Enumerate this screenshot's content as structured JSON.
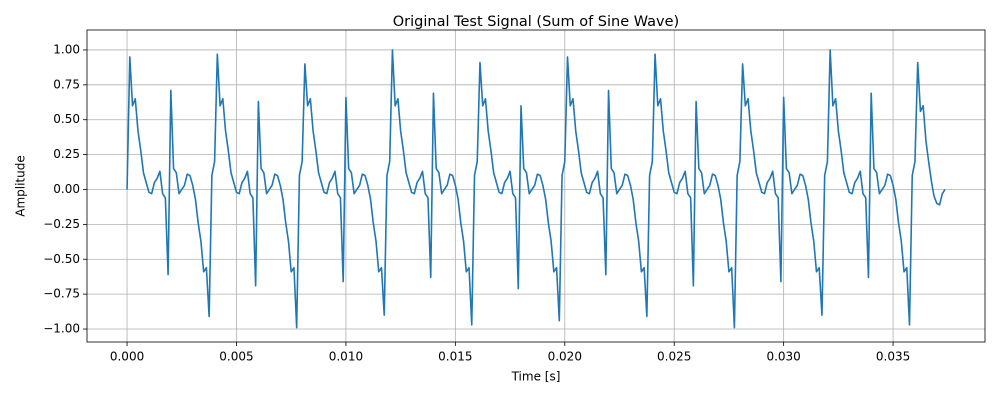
{
  "chart_data": {
    "type": "line",
    "title": "Original Test Signal (Sum of Sine Wave)",
    "xlabel": "Time [s]",
    "ylabel": "Amplitude",
    "grid": true,
    "xlim": [
      -0.00183,
      0.0392
    ],
    "ylim": [
      -1.093,
      1.143
    ],
    "xticks": [
      {
        "value": 0,
        "label": "0.000"
      },
      {
        "value": 0.005,
        "label": "0.005"
      },
      {
        "value": 0.01,
        "label": "0.010"
      },
      {
        "value": 0.015,
        "label": "0.015"
      },
      {
        "value": 0.02,
        "label": "0.020"
      },
      {
        "value": 0.025,
        "label": "0.025"
      },
      {
        "value": 0.03,
        "label": "0.030"
      },
      {
        "value": 0.035,
        "label": "0.035"
      }
    ],
    "yticks": [
      {
        "value": -1,
        "label": "−1.00"
      },
      {
        "value": -0.75,
        "label": "−0.75"
      },
      {
        "value": -0.5,
        "label": "−0.50"
      },
      {
        "value": -0.25,
        "label": "−0.25"
      },
      {
        "value": 0,
        "label": "0.00"
      },
      {
        "value": 0.25,
        "label": "0.25"
      },
      {
        "value": 0.5,
        "label": "0.50"
      },
      {
        "value": 0.75,
        "label": "0.75"
      },
      {
        "value": 1,
        "label": "1.00"
      }
    ],
    "x": [
      0,
      0.000125,
      0.00025,
      0.000375,
      0.0005,
      0.000625,
      0.00075,
      0.000875,
      0.001,
      0.001125,
      0.00125,
      0.001375,
      0.0015,
      0.001625,
      0.00175,
      0.001875,
      0.002,
      0.002125,
      0.00225,
      0.002375,
      0.0025,
      0.002625,
      0.00275,
      0.002875,
      0.003,
      0.003125,
      0.00325,
      0.003375,
      0.0035,
      0.003625,
      0.00375,
      0.003875,
      0.004,
      0.004125,
      0.00425,
      0.004375,
      0.0045,
      0.004625,
      0.00475,
      0.004875,
      0.005,
      0.005125,
      0.00525,
      0.005375,
      0.0055,
      0.005625,
      0.00575,
      0.005875,
      0.006,
      0.006125,
      0.00625,
      0.006375,
      0.0065,
      0.006625,
      0.00675,
      0.006875,
      0.007,
      0.007125,
      0.00725,
      0.007375,
      0.0075,
      0.007625,
      0.00775,
      0.007875,
      0.008,
      0.008125,
      0.00825,
      0.008375,
      0.0085,
      0.008625,
      0.00875,
      0.008875,
      0.009,
      0.009125,
      0.00925,
      0.009375,
      0.0095,
      0.009625,
      0.00975,
      0.009875,
      0.01,
      0.010125,
      0.01025,
      0.010375,
      0.0105,
      0.010625,
      0.01075,
      0.010875,
      0.011,
      0.011125,
      0.01125,
      0.011375,
      0.0115,
      0.011625,
      0.01175,
      0.011875,
      0.012,
      0.012125,
      0.01225,
      0.012375,
      0.0125,
      0.012625,
      0.01275,
      0.012875,
      0.013,
      0.013125,
      0.01325,
      0.013375,
      0.0135,
      0.013625,
      0.01375,
      0.013875,
      0.014,
      0.014125,
      0.01425,
      0.014375,
      0.0145,
      0.014625,
      0.01475,
      0.014875,
      0.015,
      0.015125,
      0.01525,
      0.015375,
      0.0155,
      0.015625,
      0.01575,
      0.015875,
      0.016,
      0.016125,
      0.01625,
      0.016375,
      0.0165,
      0.016625,
      0.01675,
      0.016875,
      0.017,
      0.017125,
      0.01725,
      0.017375,
      0.0175,
      0.017625,
      0.01775,
      0.017875,
      0.018,
      0.018125,
      0.01825,
      0.018375,
      0.0185,
      0.018625,
      0.01875,
      0.018875,
      0.019,
      0.019125,
      0.01925,
      0.019375,
      0.0195,
      0.019625,
      0.01975,
      0.019875,
      0.02,
      0.020125,
      0.02025,
      0.020375,
      0.0205,
      0.020625,
      0.02075,
      0.020875,
      0.021,
      0.021125,
      0.02125,
      0.021375,
      0.0215,
      0.021625,
      0.02175,
      0.021875,
      0.022,
      0.022125,
      0.02225,
      0.022375,
      0.0225,
      0.022625,
      0.02275,
      0.022875,
      0.023,
      0.023125,
      0.02325,
      0.023375,
      0.0235,
      0.023625,
      0.02375,
      0.023875,
      0.024,
      0.024125,
      0.02425,
      0.024375,
      0.0245,
      0.024625,
      0.02475,
      0.024875,
      0.025,
      0.025125,
      0.02525,
      0.025375,
      0.0255,
      0.025625,
      0.02575,
      0.025875,
      0.026,
      0.026125,
      0.02625,
      0.026375,
      0.0265,
      0.026625,
      0.02675,
      0.026875,
      0.027,
      0.027125,
      0.02725,
      0.027375,
      0.0275,
      0.027625,
      0.02775,
      0.027875,
      0.028,
      0.028125,
      0.02825,
      0.028375,
      0.0285,
      0.028625,
      0.02875,
      0.028875,
      0.029,
      0.029125,
      0.02925,
      0.029375,
      0.0295,
      0.029625,
      0.02975,
      0.029875,
      0.03,
      0.030125,
      0.03025,
      0.030375,
      0.0305,
      0.030625,
      0.03075,
      0.030875,
      0.031,
      0.031125,
      0.03125,
      0.031375,
      0.0315,
      0.031625,
      0.03175,
      0.031875,
      0.032,
      0.032125,
      0.03225,
      0.032375,
      0.0325,
      0.032625,
      0.03275,
      0.032875,
      0.033,
      0.033125,
      0.03325,
      0.033375,
      0.0335,
      0.033625,
      0.03375,
      0.033875,
      0.034,
      0.034125,
      0.03425,
      0.034375,
      0.0345,
      0.034625,
      0.03475,
      0.034875,
      0.035,
      0.035125,
      0.03525,
      0.035375,
      0.0355,
      0.035625,
      0.03575,
      0.035875,
      0.036,
      0.036125,
      0.03625,
      0.036375,
      0.0365,
      0.036625,
      0.03675,
      0.036875,
      0.037,
      0.037125,
      0.03725,
      0.037375
    ],
    "series": [
      {
        "color": "#1f77b4",
        "values": [
          0.0,
          0.95,
          0.6,
          0.65,
          0.42,
          0.28,
          0.12,
          0.05,
          -0.02,
          -0.03,
          0.05,
          0.08,
          0.13,
          -0.03,
          -0.06,
          -0.61,
          0.71,
          0.15,
          0.12,
          -0.03,
          0.0,
          0.03,
          0.11,
          0.1,
          0.03,
          -0.07,
          -0.24,
          -0.37,
          -0.59,
          -0.56,
          -0.91,
          0.1,
          0.2,
          0.97,
          0.6,
          0.65,
          0.42,
          0.28,
          0.12,
          0.05,
          -0.02,
          -0.03,
          0.05,
          0.08,
          0.13,
          -0.03,
          -0.06,
          -0.69,
          0.63,
          0.15,
          0.12,
          -0.03,
          0.0,
          0.03,
          0.11,
          0.1,
          0.03,
          -0.07,
          -0.24,
          -0.37,
          -0.59,
          -0.56,
          -0.99,
          0.1,
          0.2,
          0.9,
          0.6,
          0.65,
          0.42,
          0.28,
          0.12,
          0.05,
          -0.02,
          -0.03,
          0.05,
          0.08,
          0.13,
          -0.03,
          -0.06,
          -0.66,
          0.66,
          0.15,
          0.12,
          -0.03,
          0.0,
          0.03,
          0.11,
          0.1,
          0.03,
          -0.07,
          -0.24,
          -0.37,
          -0.59,
          -0.56,
          -0.9,
          0.1,
          0.2,
          1.0,
          0.6,
          0.65,
          0.42,
          0.28,
          0.12,
          0.05,
          -0.02,
          -0.03,
          0.05,
          0.08,
          0.13,
          -0.03,
          -0.06,
          -0.63,
          0.69,
          0.15,
          0.12,
          -0.03,
          0.0,
          0.03,
          0.11,
          0.1,
          0.03,
          -0.07,
          -0.24,
          -0.37,
          -0.59,
          -0.56,
          -0.97,
          0.1,
          0.2,
          0.91,
          0.6,
          0.65,
          0.42,
          0.28,
          0.12,
          0.05,
          -0.02,
          -0.03,
          0.05,
          0.08,
          0.13,
          -0.03,
          -0.06,
          -0.71,
          0.6,
          0.15,
          0.12,
          -0.03,
          0.0,
          0.03,
          0.11,
          0.1,
          0.03,
          -0.07,
          -0.24,
          -0.37,
          -0.59,
          -0.56,
          -0.94,
          0.1,
          0.2,
          0.95,
          0.6,
          0.65,
          0.42,
          0.28,
          0.12,
          0.05,
          -0.02,
          -0.03,
          0.05,
          0.08,
          0.13,
          -0.03,
          -0.06,
          -0.61,
          0.71,
          0.15,
          0.12,
          -0.03,
          0.0,
          0.03,
          0.11,
          0.1,
          0.03,
          -0.07,
          -0.24,
          -0.37,
          -0.59,
          -0.56,
          -0.91,
          0.1,
          0.2,
          0.97,
          0.6,
          0.65,
          0.42,
          0.28,
          0.12,
          0.05,
          -0.02,
          -0.03,
          0.05,
          0.08,
          0.13,
          -0.03,
          -0.06,
          -0.69,
          0.63,
          0.15,
          0.12,
          -0.03,
          0.0,
          0.03,
          0.11,
          0.1,
          0.03,
          -0.07,
          -0.24,
          -0.37,
          -0.59,
          -0.56,
          -0.99,
          0.1,
          0.2,
          0.9,
          0.6,
          0.65,
          0.42,
          0.28,
          0.12,
          0.05,
          -0.02,
          -0.03,
          0.05,
          0.08,
          0.13,
          -0.03,
          -0.06,
          -0.66,
          0.66,
          0.15,
          0.12,
          -0.03,
          0.0,
          0.03,
          0.11,
          0.1,
          0.03,
          -0.07,
          -0.24,
          -0.37,
          -0.59,
          -0.56,
          -0.9,
          0.1,
          0.2,
          1.0,
          0.6,
          0.65,
          0.42,
          0.28,
          0.12,
          0.05,
          -0.02,
          -0.03,
          0.05,
          0.08,
          0.13,
          -0.03,
          -0.06,
          -0.63,
          0.69,
          0.15,
          0.12,
          -0.03,
          0.0,
          0.03,
          0.11,
          0.1,
          0.03,
          -0.07,
          -0.24,
          -0.37,
          -0.59,
          -0.56,
          -0.97,
          0.1,
          0.2,
          0.91,
          0.56,
          0.6,
          0.35,
          0.2,
          0.06,
          -0.05,
          -0.1,
          -0.11,
          -0.03,
          0.0
        ]
      }
    ]
  }
}
